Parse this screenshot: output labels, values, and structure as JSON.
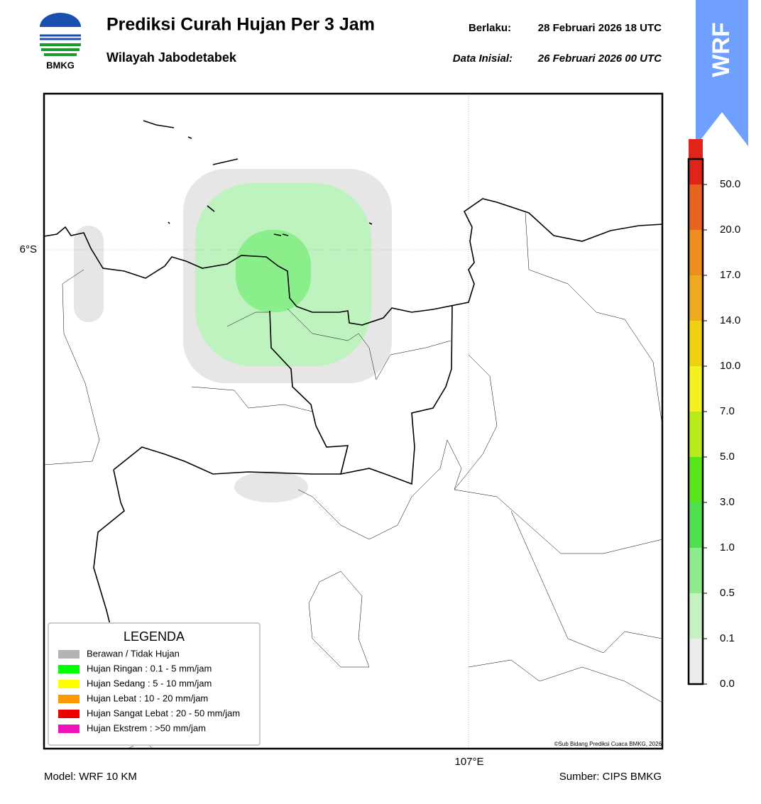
{
  "header": {
    "title": "Prediksi Curah Hujan Per 3 Jam",
    "subtitle": "Wilayah Jabodetabek",
    "valid_label": "Berlaku:",
    "valid": "28 Februari 2026 18 UTC",
    "init_label": "Data Inisial:",
    "init": "26 Februari 2026 00 UTC",
    "logo_text": "BMKG",
    "badge": "WRF"
  },
  "map": {
    "lat_label": "6°S",
    "lon_label": "107°E",
    "copyright": "©Sub Bidang Prediksi Cuaca BMKG, 2026"
  },
  "legend": {
    "title": "LEGENDA",
    "items": [
      {
        "label": "Berawan / Tidak Hujan",
        "color": "#b4b4b4"
      },
      {
        "label": "Hujan Ringan : 0.1 - 5 mm/jam",
        "color": "#00ff00"
      },
      {
        "label": "Hujan Sedang : 5 - 10 mm/jam",
        "color": "#ffff00"
      },
      {
        "label": "Hujan Lebat : 10 - 20 mm/jam",
        "color": "#ff9900"
      },
      {
        "label": "Hujan Sangat Lebat : 20 - 50 mm/jam",
        "color": "#ee0000"
      },
      {
        "label": "Hujan Ekstrem : >50 mm/jam",
        "color": "#ee11bb"
      }
    ]
  },
  "colorbar": {
    "ticks": [
      "0.0",
      "0.1",
      "0.5",
      "1.0",
      "3.0",
      "5.0",
      "7.0",
      "10.0",
      "14.0",
      "17.0",
      "20.0",
      "50.0"
    ],
    "colors": [
      "#ececec",
      "#c6f2c2",
      "#8eec8e",
      "#4fe04f",
      "#5ae41c",
      "#b8ea1c",
      "#f5f020",
      "#f0d012",
      "#eeaa20",
      "#ee8c20",
      "#e8641e",
      "#e0241c",
      "#e020c8"
    ]
  },
  "footer": {
    "model": "Model: WRF 10 KM",
    "source": "Sumber: CIPS BMKG"
  }
}
